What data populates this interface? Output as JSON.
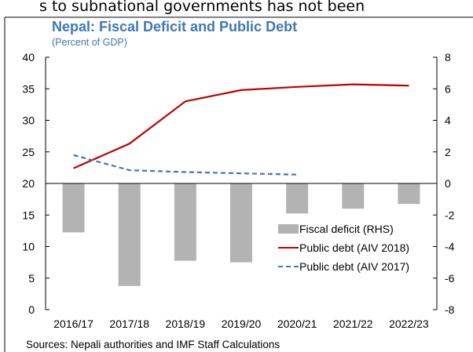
{
  "page": {
    "clipped_text": "s to subnational governments has not been",
    "source": "Sources: Nepali authorities and IMF Staff Calculations"
  },
  "chart_data": {
    "type": "bar",
    "title": "Nepal: Fiscal Deficit and Public Debt",
    "subtitle": "(Percent of GDP)",
    "categories": [
      "2016/17",
      "2017/18",
      "2018/19",
      "2019/20",
      "2020/21",
      "2021/22",
      "2022/23"
    ],
    "ylim_left": [
      0,
      40
    ],
    "yticks_left": [
      0,
      5,
      10,
      15,
      20,
      25,
      30,
      35,
      40
    ],
    "ylim_right": [
      -8,
      8
    ],
    "yticks_right": [
      -8,
      -6,
      -4,
      -2,
      0,
      2,
      4,
      6,
      8
    ],
    "grid": false,
    "legend_position": "bottom-right",
    "series": [
      {
        "name": "Fiscal deficit (RHS)",
        "type": "bar",
        "axis": "right",
        "color": "#b3b3b3",
        "values": [
          -3.1,
          -6.5,
          -4.9,
          -5.0,
          -1.9,
          -1.6,
          -1.3
        ]
      },
      {
        "name": "Public debt (AIV 2018)",
        "type": "line",
        "axis": "left",
        "color": "#c00000",
        "values": [
          22.4,
          26.3,
          33.0,
          34.8,
          35.3,
          35.7,
          35.5
        ]
      },
      {
        "name": "Public debt (AIV 2017)",
        "type": "line-dashed",
        "axis": "left",
        "color": "#4472c4",
        "values": [
          24.5,
          22.1,
          21.8,
          21.6,
          21.4,
          null,
          null
        ]
      }
    ]
  }
}
